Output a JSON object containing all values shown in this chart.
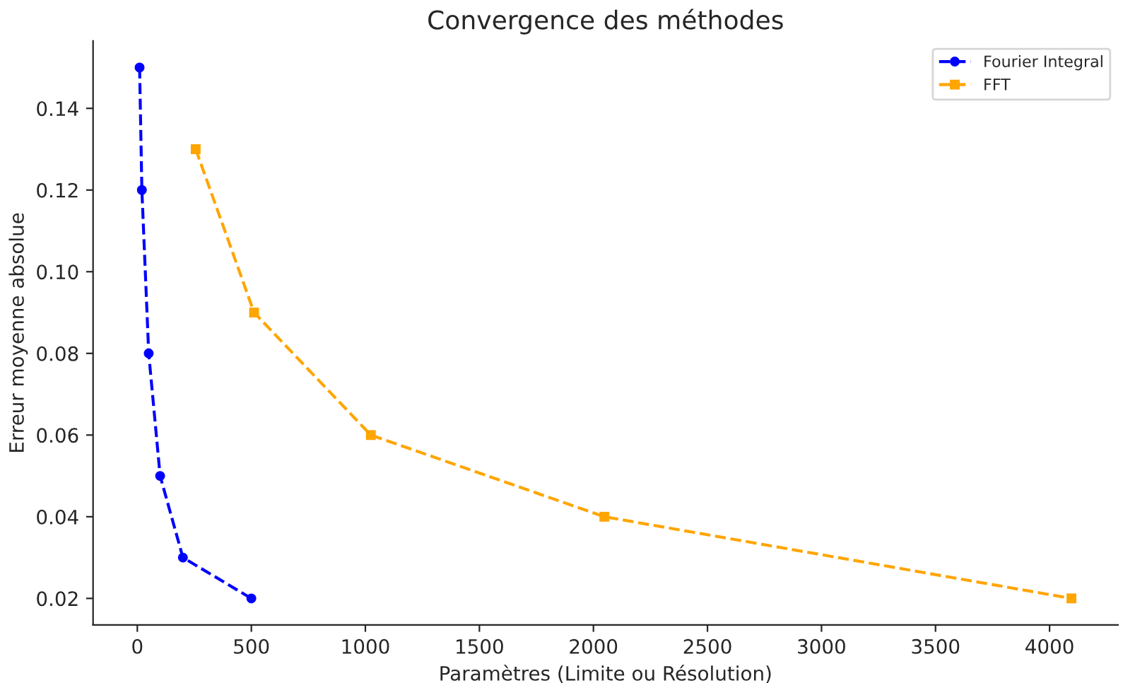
{
  "chart_data": {
    "type": "line",
    "title": "Convergence des méthodes",
    "xlabel": "Paramètres (Limite ou Résolution)",
    "ylabel": "Erreur moyenne absolue",
    "series": [
      {
        "name": "Fourier Integral",
        "color": "#0000ff",
        "x": [
          10,
          20,
          50,
          100,
          200,
          500
        ],
        "values": [
          0.15,
          0.12,
          0.08,
          0.05,
          0.03,
          0.02
        ],
        "marker": "circle"
      },
      {
        "name": "FFT",
        "color": "#ffa500",
        "x": [
          256,
          512,
          1024,
          2048,
          4096
        ],
        "values": [
          0.13,
          0.09,
          0.06,
          0.04,
          0.02
        ],
        "marker": "square"
      }
    ],
    "line_style": "dashed",
    "xlim": [
      -194,
      4300
    ],
    "ylim": [
      0.0135,
      0.1565
    ],
    "xticks": [
      0,
      500,
      1000,
      1500,
      2000,
      2500,
      3000,
      3500,
      4000
    ],
    "yticks": [
      {
        "value": 0.02,
        "label": "0.02"
      },
      {
        "value": 0.04,
        "label": "0.04"
      },
      {
        "value": 0.06,
        "label": "0.06"
      },
      {
        "value": 0.08,
        "label": "0.08"
      },
      {
        "value": 0.1,
        "label": "0.10"
      },
      {
        "value": 0.12,
        "label": "0.12"
      },
      {
        "value": 0.14,
        "label": "0.14"
      }
    ],
    "grid": false,
    "legend": "top right"
  }
}
